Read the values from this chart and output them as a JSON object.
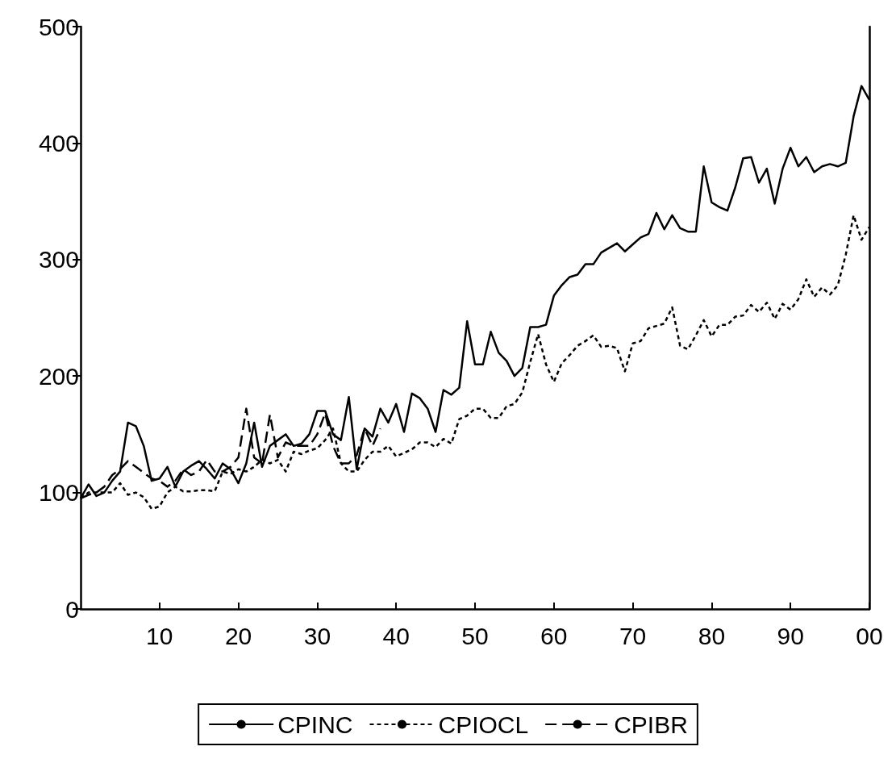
{
  "chart_data": {
    "type": "line",
    "x": [
      1900,
      1901,
      1902,
      1903,
      1904,
      1905,
      1906,
      1907,
      1908,
      1909,
      1910,
      1911,
      1912,
      1913,
      1914,
      1915,
      1916,
      1917,
      1918,
      1919,
      1920,
      1921,
      1922,
      1923,
      1924,
      1925,
      1926,
      1927,
      1928,
      1929,
      1930,
      1931,
      1932,
      1933,
      1934,
      1935,
      1936,
      1937,
      1938,
      1939,
      1940,
      1941,
      1942,
      1943,
      1944,
      1945,
      1946,
      1947,
      1948,
      1949,
      1950,
      1951,
      1952,
      1953,
      1954,
      1955,
      1956,
      1957,
      1958,
      1959,
      1960,
      1961,
      1962,
      1963,
      1964,
      1965,
      1966,
      1967,
      1968,
      1969,
      1970,
      1971,
      1972,
      1973,
      1974,
      1975,
      1976,
      1977,
      1978,
      1979,
      1980,
      1981,
      1982,
      1983,
      1984,
      1985,
      1986,
      1987,
      1988,
      1989,
      1990,
      1991,
      1992,
      1993,
      1994,
      1995,
      1996,
      1997,
      1998,
      1999,
      2000
    ],
    "xlim": [
      1900,
      2000
    ],
    "xticks": [
      {
        "value": 1910,
        "label": "10"
      },
      {
        "value": 1920,
        "label": "20"
      },
      {
        "value": 1930,
        "label": "30"
      },
      {
        "value": 1940,
        "label": "40"
      },
      {
        "value": 1950,
        "label": "50"
      },
      {
        "value": 1960,
        "label": "60"
      },
      {
        "value": 1970,
        "label": "70"
      },
      {
        "value": 1980,
        "label": "80"
      },
      {
        "value": 1990,
        "label": "90"
      },
      {
        "value": 2000,
        "label": "00"
      }
    ],
    "ylim": [
      0,
      500
    ],
    "yticks": [
      0,
      100,
      200,
      300,
      400,
      500
    ],
    "grid": false,
    "legend": "bottom",
    "marker": "none",
    "series": [
      {
        "name": "CPINC",
        "color": "#000000",
        "line_style": "solid",
        "values": [
          95,
          107,
          97,
          100,
          110,
          118,
          160,
          157,
          140,
          110,
          112,
          122,
          105,
          118,
          123,
          127,
          120,
          112,
          125,
          120,
          108,
          125,
          160,
          122,
          140,
          145,
          150,
          140,
          142,
          150,
          170,
          170,
          150,
          145,
          182,
          120,
          155,
          148,
          172,
          160,
          176,
          152,
          185,
          181,
          172,
          152,
          188,
          184,
          190,
          247,
          210,
          210,
          238,
          220,
          213,
          200,
          207,
          242,
          242,
          244,
          269,
          278,
          285,
          287,
          296,
          296,
          306,
          310,
          314,
          307,
          313,
          319,
          322,
          340,
          326,
          338,
          327,
          324,
          324,
          380,
          349,
          345,
          342,
          362,
          387,
          388,
          366,
          378,
          348,
          378,
          396,
          380,
          388,
          375,
          380,
          382,
          380,
          383,
          423,
          449,
          437
        ]
      },
      {
        "name": "CPIOCL",
        "color": "#000000",
        "line_style": "dotted",
        "values": [
          95,
          100,
          100,
          100,
          100,
          108,
          98,
          100,
          96,
          86,
          88,
          100,
          105,
          101,
          101,
          102,
          102,
          101,
          118,
          116,
          120,
          118,
          122,
          128,
          125,
          128,
          118,
          135,
          133,
          136,
          138,
          145,
          155,
          125,
          118,
          118,
          128,
          135,
          135,
          140,
          131,
          134,
          137,
          143,
          143,
          139,
          146,
          142,
          163,
          166,
          172,
          172,
          164,
          164,
          174,
          176,
          186,
          212,
          236,
          210,
          195,
          211,
          218,
          226,
          230,
          235,
          225,
          226,
          224,
          204,
          228,
          230,
          241,
          243,
          245,
          259,
          226,
          223,
          235,
          248,
          234,
          244,
          244,
          251,
          252,
          261,
          255,
          263,
          249,
          262,
          257,
          266,
          283,
          268,
          276,
          270,
          278,
          304,
          338,
          317,
          328
        ]
      },
      {
        "name": "CPIBR",
        "color": "#000000",
        "line_style": "dashed",
        "values": [
          95,
          98,
          100,
          105,
          115,
          120,
          127,
          122,
          117,
          112,
          110,
          105,
          110,
          120,
          115,
          118,
          128,
          118,
          118,
          122,
          130,
          172,
          130,
          125,
          167,
          130,
          143,
          140,
          140,
          140,
          150,
          168,
          140,
          125,
          125,
          132,
          155,
          140,
          155,
          null,
          null,
          null,
          null,
          null,
          null,
          null,
          null,
          null,
          null,
          null,
          null,
          null,
          null,
          null,
          null,
          null,
          null,
          null,
          null,
          null,
          null,
          null,
          null,
          null,
          null,
          null,
          null,
          null,
          null,
          null,
          null,
          null,
          null,
          null,
          null,
          null,
          null,
          null,
          null,
          null,
          null,
          null,
          null,
          null,
          null,
          null,
          null,
          null,
          null,
          null,
          null,
          null,
          null,
          null,
          null,
          null,
          null,
          null,
          null,
          null,
          null
        ]
      }
    ]
  }
}
